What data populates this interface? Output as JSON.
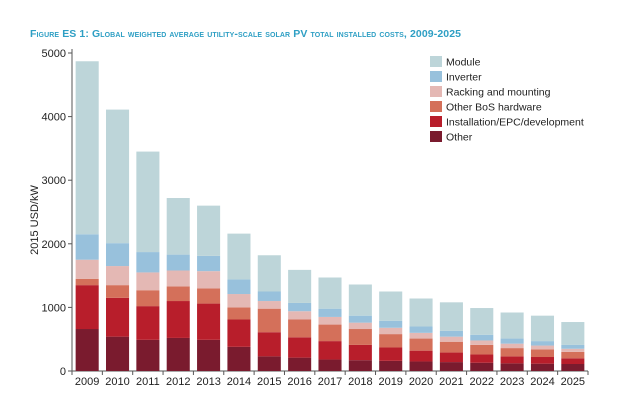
{
  "chart_data": {
    "type": "bar",
    "stacked": true,
    "title": "Figure ES 1: Global weighted average utility-scale solar PV total installed costs, 2009-2025",
    "xlabel": "",
    "ylabel": "2015 USD/kW",
    "ylim": [
      0,
      5000
    ],
    "yticks": [
      0,
      1000,
      2000,
      3000,
      4000,
      5000
    ],
    "grid": false,
    "legend_position": "top-right",
    "categories": [
      "2009",
      "2010",
      "2011",
      "2012",
      "2013",
      "2014",
      "2015",
      "2016",
      "2017",
      "2018",
      "2019",
      "2020",
      "2021",
      "2022",
      "2023",
      "2024",
      "2025"
    ],
    "series": [
      {
        "name": "Other",
        "color": "#7a1b2e",
        "values": [
          660,
          540,
          490,
          520,
          490,
          380,
          230,
          210,
          180,
          170,
          160,
          150,
          140,
          130,
          120,
          115,
          110
        ]
      },
      {
        "name": "Installation/EPC/development",
        "color": "#b81e2b",
        "values": [
          690,
          610,
          530,
          580,
          570,
          430,
          380,
          320,
          290,
          240,
          210,
          170,
          150,
          130,
          110,
          105,
          90
        ]
      },
      {
        "name": "Other BoS hardware",
        "color": "#d4705a",
        "values": [
          100,
          200,
          250,
          230,
          240,
          190,
          370,
          280,
          260,
          250,
          210,
          190,
          170,
          150,
          130,
          120,
          100
        ]
      },
      {
        "name": "Racking and mounting",
        "color": "#e4b8b4",
        "values": [
          300,
          300,
          280,
          250,
          270,
          210,
          120,
          130,
          120,
          100,
          100,
          90,
          80,
          70,
          70,
          60,
          50
        ]
      },
      {
        "name": "Inverter",
        "color": "#98c1dc",
        "values": [
          400,
          360,
          320,
          250,
          240,
          230,
          150,
          130,
          130,
          110,
          110,
          100,
          90,
          90,
          80,
          70,
          60
        ]
      },
      {
        "name": "Module",
        "color": "#bdd5d9",
        "values": [
          2720,
          2100,
          1580,
          890,
          790,
          720,
          570,
          520,
          490,
          490,
          460,
          440,
          450,
          420,
          410,
          400,
          360
        ]
      }
    ]
  }
}
